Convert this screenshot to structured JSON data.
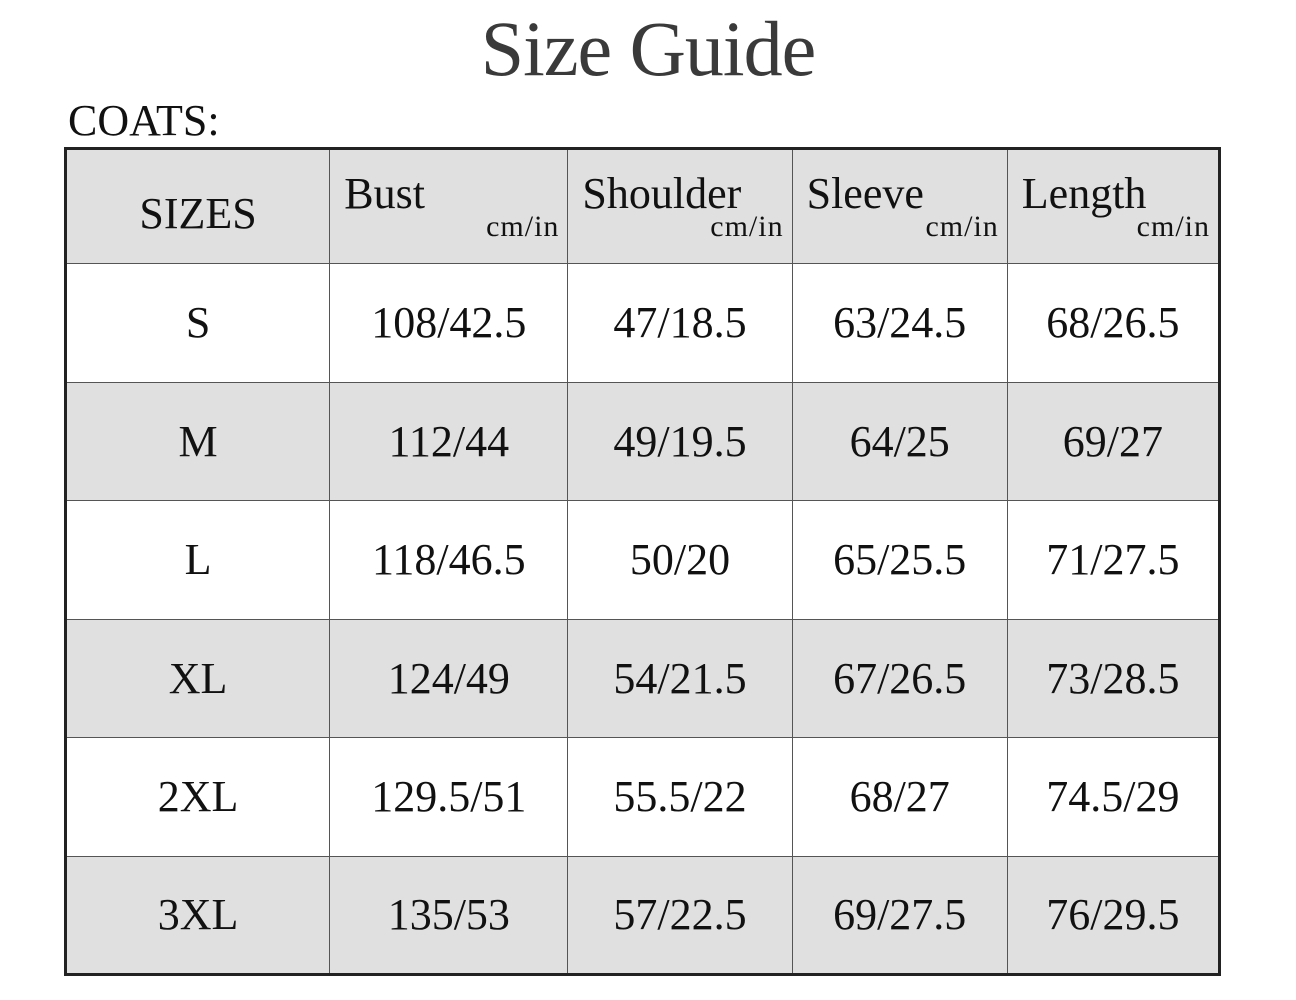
{
  "title": "Size Guide",
  "section_label": "COATS:",
  "table": {
    "headers": [
      {
        "name": "SIZES",
        "unit": ""
      },
      {
        "name": "Bust",
        "unit": "cm/in"
      },
      {
        "name": "Shoulder",
        "unit": "cm/in"
      },
      {
        "name": "Sleeve",
        "unit": "cm/in"
      },
      {
        "name": "Length",
        "unit": "cm/in"
      }
    ],
    "rows": [
      [
        "S",
        "108/42.5",
        "47/18.5",
        "63/24.5",
        "68/26.5"
      ],
      [
        "M",
        "112/44",
        "49/19.5",
        "64/25",
        "69/27"
      ],
      [
        "L",
        "118/46.5",
        "50/20",
        "65/25.5",
        "71/27.5"
      ],
      [
        "XL",
        "124/49",
        "54/21.5",
        "67/26.5",
        "73/28.5"
      ],
      [
        "2XL",
        "129.5/51",
        "55.5/22",
        "68/27",
        "74.5/29"
      ],
      [
        "3XL",
        "135/53",
        "57/22.5",
        "69/27.5",
        "76/29.5"
      ]
    ]
  },
  "colors": {
    "shaded_row": "#e0e0e0",
    "border": "#222222",
    "title_text": "#3a3a3a"
  }
}
